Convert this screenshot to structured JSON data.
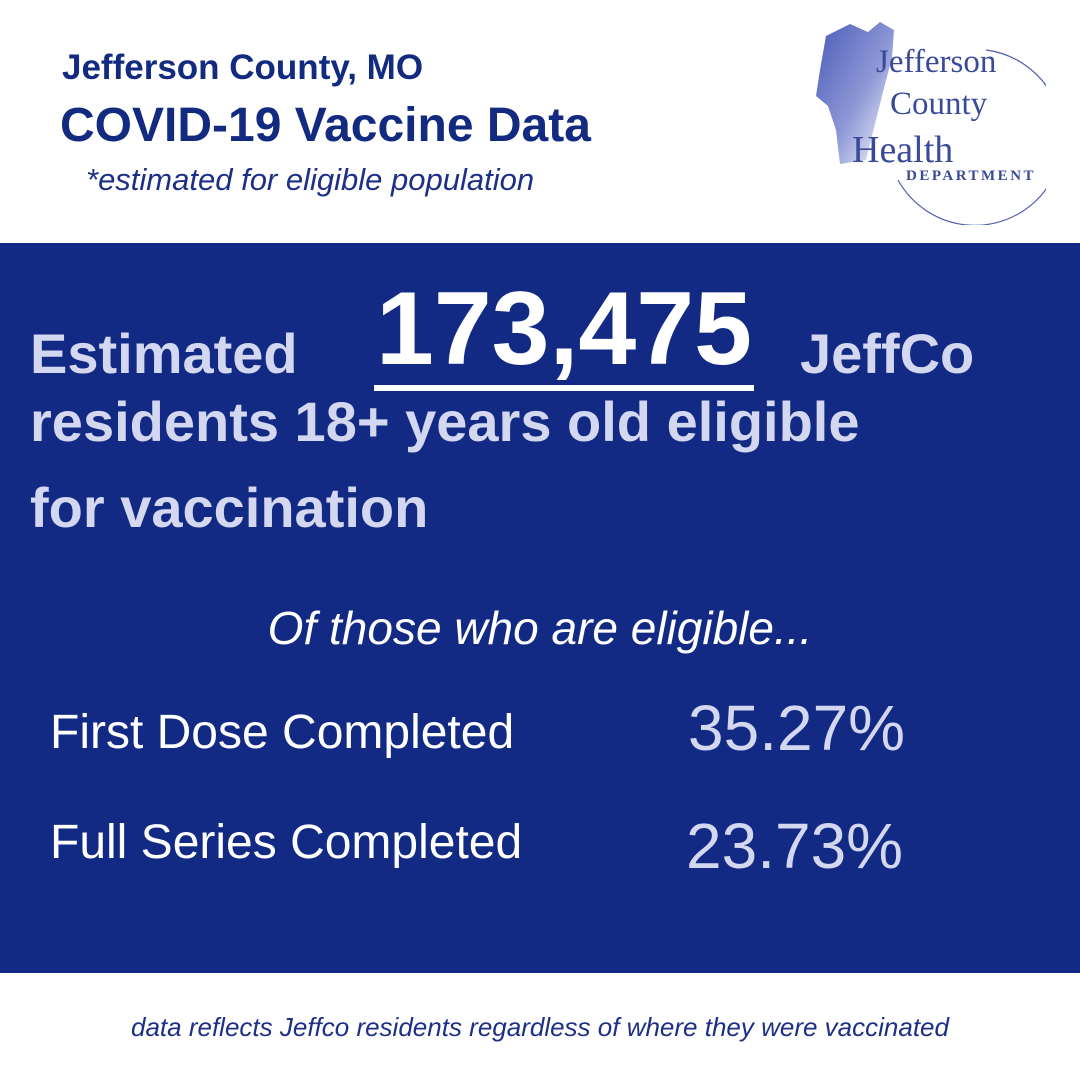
{
  "header": {
    "county_line": "Jefferson County, MO",
    "title": "COVID-19 Vaccine Data",
    "note": "*estimated for eligible population"
  },
  "logo": {
    "line1": "Jefferson",
    "line2": "County",
    "line3": "Health",
    "line4": "DEPARTMENT",
    "icon": "county-map-icon",
    "color": "#3a4a9a"
  },
  "panel": {
    "estimated_word": "Estimated",
    "eligible_count": "173,475",
    "jeffco_word": "JeffCo",
    "line2": "residents 18+ years old eligible",
    "line3": "for vaccination",
    "of_eligible": "Of those who are eligible...",
    "stats": [
      {
        "label": "First Dose Completed",
        "value": "35.27%"
      },
      {
        "label": "Full Series Completed",
        "value": "23.73%"
      }
    ]
  },
  "footer": "data reflects Jeffco residents regardless of where they were vaccinated",
  "colors": {
    "navy_panel": "#122a84",
    "navy_text": "#122a7f",
    "light_text": "#d3d7ef",
    "white": "#ffffff"
  }
}
